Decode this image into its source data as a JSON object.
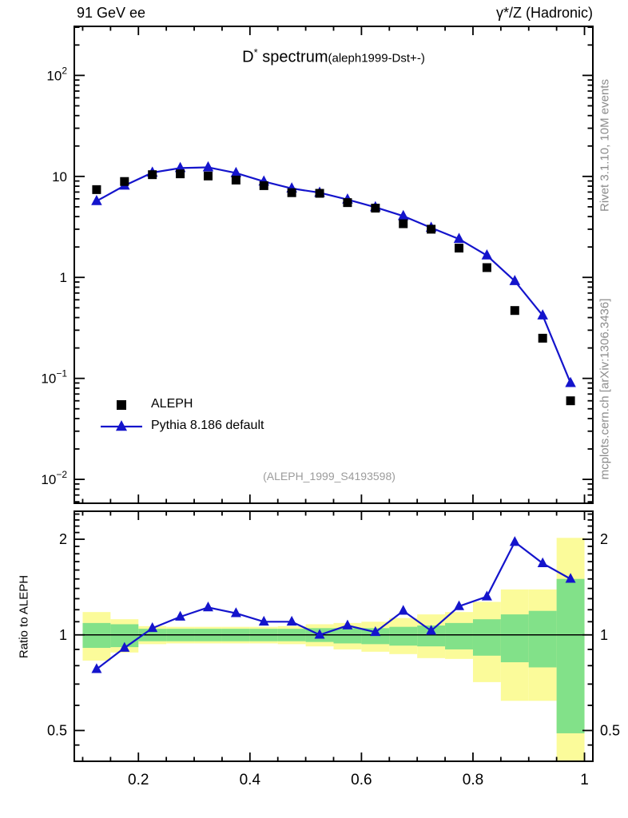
{
  "header": {
    "left": "91 GeV ee",
    "right": "γ*/Z (Hadronic)"
  },
  "plot_title": {
    "d": "D",
    "star": "*",
    "rest": " spectrum",
    "note": "(aleph1999-Dst+-)"
  },
  "side_notes": {
    "rivet": "Rivet 3.1.10,  10M events",
    "mcplots": "mcplots.cern.ch [arXiv:1306.3436]"
  },
  "watermark": "(ALEPH_1999_S4193598)",
  "legend": [
    {
      "label": "ALEPH",
      "marker": "filled-square",
      "color": "#000000"
    },
    {
      "label": "Pythia 8.186 default",
      "marker": "filled-triangle-line",
      "color": "#1414cc"
    }
  ],
  "colors": {
    "pythia_blue": "#1414cc",
    "data_black": "#000000",
    "band_green": "#82e189",
    "band_yellow": "#fbfb9a",
    "frame": "#000000",
    "gray_text": "#8c8c8c"
  },
  "chart_data": {
    "type": "scatter-line-with-ratio",
    "title": "D* spectrum",
    "title_note": "(aleph1999-Dst+-)",
    "xlabel": "",
    "xlim": [
      0.085,
      1.015
    ],
    "x_bin_edges": [
      0.1,
      0.15,
      0.2,
      0.25,
      0.3,
      0.35,
      0.4,
      0.45,
      0.5,
      0.55,
      0.6,
      0.65,
      0.7,
      0.75,
      0.8,
      0.85,
      0.9,
      0.95,
      1.0
    ],
    "x_bin_centers": [
      0.125,
      0.175,
      0.225,
      0.275,
      0.325,
      0.375,
      0.425,
      0.475,
      0.525,
      0.575,
      0.625,
      0.675,
      0.725,
      0.775,
      0.825,
      0.875,
      0.925,
      0.975
    ],
    "xticks": [
      {
        "v": 0.2,
        "label": "0.2"
      },
      {
        "v": 0.4,
        "label": "0.4"
      },
      {
        "v": 0.6,
        "label": "0.6"
      },
      {
        "v": 0.8,
        "label": "0.8"
      },
      {
        "v": 1.0,
        "label": "1"
      }
    ],
    "main_panel": {
      "yscale": "log",
      "ylim": [
        0.0058,
        306
      ],
      "yticks": [
        {
          "v": 100,
          "base": "10",
          "exp": "2"
        },
        {
          "v": 10,
          "base": "10",
          "exp": ""
        },
        {
          "v": 1,
          "base": "1",
          "exp": ""
        },
        {
          "v": 0.1,
          "base": "10",
          "exp": "−1"
        },
        {
          "v": 0.01,
          "base": "10",
          "exp": "−2"
        }
      ],
      "series": [
        {
          "name": "ALEPH",
          "marker": "filled-square",
          "color": "#000000",
          "values": [
            7.4,
            8.9,
            10.4,
            10.6,
            10.1,
            9.2,
            8.1,
            6.9,
            6.8,
            5.5,
            4.85,
            3.4,
            3.0,
            1.95,
            1.25,
            0.47,
            0.25,
            0.06
          ]
        },
        {
          "name": "Pythia 8.186 default",
          "marker": "filled-triangle-line",
          "color": "#1414cc",
          "values": [
            5.7,
            8.1,
            10.9,
            12.1,
            12.3,
            10.8,
            8.9,
            7.6,
            6.9,
            5.9,
            4.95,
            4.05,
            3.1,
            2.4,
            1.65,
            0.92,
            0.42,
            0.09
          ]
        }
      ]
    },
    "ratio_panel": {
      "ylabel": "Ratio to ALEPH",
      "yscale": "log",
      "ylim": [
        0.4,
        2.45
      ],
      "yticks": [
        {
          "v": 2,
          "label": "2"
        },
        {
          "v": 1,
          "label": "1"
        },
        {
          "v": 0.5,
          "label": "0.5"
        }
      ],
      "reference_line": 1.0,
      "ratio_values": [
        0.78,
        0.91,
        1.05,
        1.14,
        1.22,
        1.17,
        1.1,
        1.1,
        1.0,
        1.07,
        1.02,
        1.19,
        1.03,
        1.23,
        1.32,
        1.96,
        1.68,
        1.5
      ],
      "bands": {
        "green": [
          [
            0.91,
            1.09
          ],
          [
            0.915,
            1.08
          ],
          [
            0.955,
            1.045
          ],
          [
            0.955,
            1.045
          ],
          [
            0.955,
            1.045
          ],
          [
            0.955,
            1.045
          ],
          [
            0.955,
            1.045
          ],
          [
            0.955,
            1.045
          ],
          [
            0.95,
            1.05
          ],
          [
            0.94,
            1.05
          ],
          [
            0.935,
            1.05
          ],
          [
            0.925,
            1.06
          ],
          [
            0.92,
            1.07
          ],
          [
            0.9,
            1.09
          ],
          [
            0.86,
            1.12
          ],
          [
            0.82,
            1.16
          ],
          [
            0.79,
            1.19
          ],
          [
            0.49,
            1.5
          ]
        ],
        "yellow": [
          [
            0.83,
            1.18
          ],
          [
            0.88,
            1.12
          ],
          [
            0.935,
            1.065
          ],
          [
            0.94,
            1.06
          ],
          [
            0.94,
            1.06
          ],
          [
            0.94,
            1.06
          ],
          [
            0.94,
            1.06
          ],
          [
            0.935,
            1.065
          ],
          [
            0.92,
            1.08
          ],
          [
            0.9,
            1.09
          ],
          [
            0.885,
            1.1
          ],
          [
            0.87,
            1.13
          ],
          [
            0.845,
            1.16
          ],
          [
            0.84,
            1.18
          ],
          [
            0.71,
            1.27
          ],
          [
            0.62,
            1.39
          ],
          [
            0.62,
            1.39
          ],
          [
            0.38,
            2.02
          ]
        ]
      }
    }
  }
}
